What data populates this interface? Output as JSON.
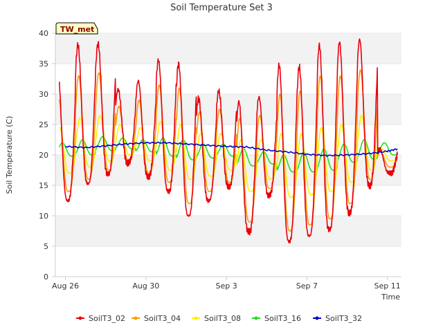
{
  "chart_data": {
    "type": "line",
    "title": "Soil Temperature Set 3",
    "xlabel": "Time",
    "ylabel": "Soil Temperature (C)",
    "badge": "TW_met",
    "x_unit": "date (day index from Aug 26)",
    "xlim": [
      -0.5,
      16.7
    ],
    "ylim": [
      0,
      40
    ],
    "yticks": [
      0,
      5,
      10,
      15,
      20,
      25,
      30,
      35,
      40
    ],
    "xtick_labels": [
      "Aug 26",
      "Aug 30",
      "Sep 3",
      "Sep 7",
      "Sep 11"
    ],
    "grid": "horizontal bands",
    "legend_position": "bottom",
    "colors": {
      "SoilT3_02": "#e8000b",
      "SoilT3_04": "#ff9900",
      "SoilT3_08": "#ffee00",
      "SoilT3_16": "#22dd22",
      "SoilT3_32": "#0000cc"
    },
    "series": [
      {
        "name": "SoilT3_02",
        "daily_min": [
          12.5,
          15.3,
          16.8,
          18.7,
          16.5,
          14.0,
          10.0,
          12.5,
          14.8,
          7.3,
          13.3,
          5.8,
          6.7,
          7.7,
          10.5,
          15.0,
          17.0
        ],
        "daily_max": [
          34.0,
          38.0,
          38.3,
          30.8,
          32.2,
          35.6,
          35.0,
          29.3,
          30.5,
          28.8,
          29.5,
          34.8,
          34.5,
          38.0,
          38.5,
          39.0,
          21.0
        ]
      },
      {
        "name": "SoilT3_04",
        "daily_min": [
          14.0,
          16.0,
          17.5,
          19.0,
          17.0,
          15.5,
          12.0,
          14.0,
          15.5,
          9.0,
          14.5,
          7.5,
          8.5,
          9.5,
          12.0,
          16.0,
          18.0
        ],
        "daily_max": [
          29.5,
          33.0,
          33.5,
          28.0,
          29.0,
          31.5,
          31.0,
          27.0,
          27.5,
          26.0,
          26.5,
          30.0,
          30.5,
          33.0,
          33.0,
          34.0,
          20.5
        ]
      },
      {
        "name": "SoilT3_08",
        "daily_min": [
          17.0,
          18.0,
          19.0,
          20.0,
          19.0,
          17.5,
          16.0,
          16.5,
          17.5,
          14.0,
          16.0,
          13.0,
          13.5,
          14.0,
          15.5,
          17.5,
          19.0
        ],
        "daily_max": [
          24.5,
          26.0,
          26.5,
          25.0,
          24.5,
          25.5,
          25.0,
          23.5,
          23.5,
          22.5,
          22.5,
          23.5,
          23.5,
          24.5,
          25.0,
          26.5,
          21.0
        ]
      },
      {
        "name": "SoilT3_16",
        "daily_min": [
          19.8,
          20.0,
          20.7,
          21.0,
          20.5,
          19.8,
          19.2,
          19.5,
          19.8,
          18.2,
          18.5,
          17.2,
          17.2,
          17.5,
          18.8,
          19.3,
          20.0
        ],
        "daily_max": [
          22.0,
          22.5,
          23.0,
          22.8,
          22.5,
          22.8,
          22.5,
          21.8,
          21.8,
          21.0,
          20.5,
          20.0,
          20.5,
          21.0,
          21.8,
          22.5,
          22.0
        ]
      },
      {
        "name": "SoilT3_32",
        "x": [
          0,
          1,
          2,
          3,
          4,
          5,
          6,
          7,
          8,
          9,
          10,
          11,
          12,
          13,
          14,
          15,
          16,
          16.5
        ],
        "y": [
          21.4,
          21.2,
          21.5,
          21.8,
          22.0,
          22.0,
          21.8,
          21.6,
          21.4,
          21.3,
          20.8,
          20.5,
          20.1,
          19.9,
          20.0,
          20.2,
          20.6,
          21.0
        ]
      }
    ]
  }
}
